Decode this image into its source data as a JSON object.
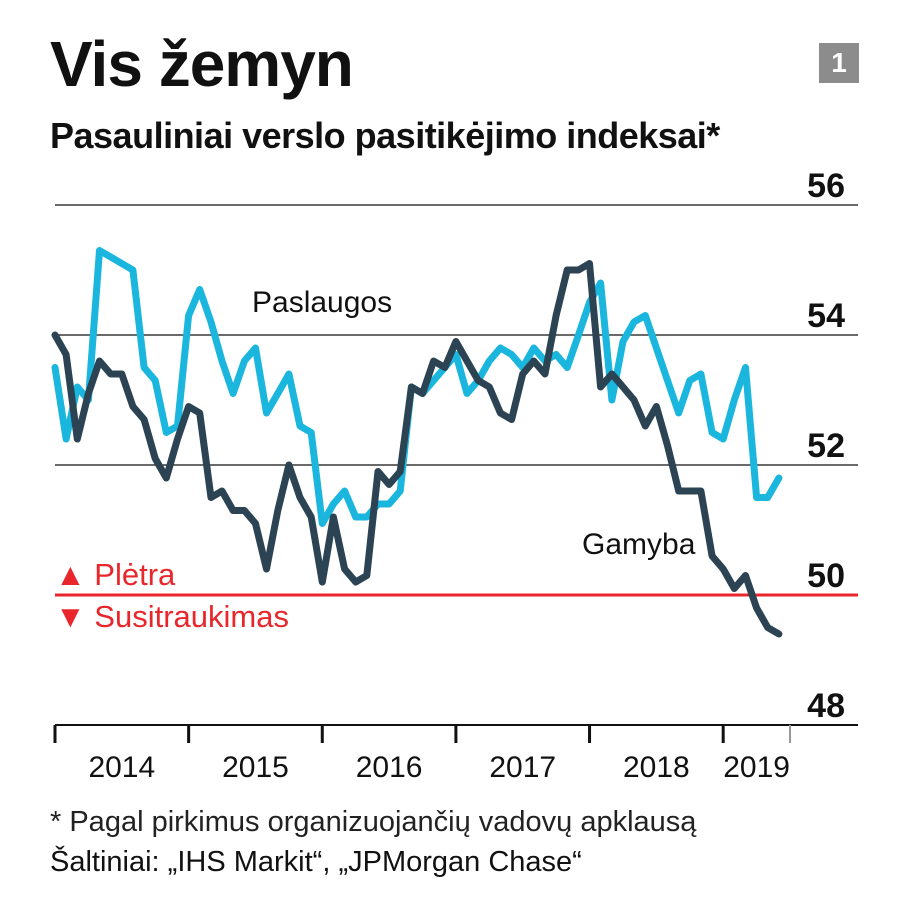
{
  "badge": "1",
  "colors": {
    "accent": "#e8262b",
    "services": "#1bb6de",
    "manufacturing": "#2c4353",
    "grid": "#111111",
    "badge_bg": "#8c8c8c"
  },
  "footnote": "* Pagal pirkimus organizuojančių vadovų apklausą",
  "sources": "Šaltiniai: „IHS Markit“, „JPMorgan Chase“",
  "chart_data": {
    "type": "line",
    "title": "Vis žemyn",
    "subtitle": "Pasauliniai verslo pasitikėjimo indeksai*",
    "ylim": [
      48,
      56
    ],
    "y_ticks": [
      48,
      50,
      52,
      54,
      56
    ],
    "grid": true,
    "x_range": [
      2014.0,
      2019.5
    ],
    "x_ticks": [
      "2014",
      "2015",
      "2016",
      "2017",
      "2018",
      "2019"
    ],
    "reference_line": {
      "value": 50,
      "label_above": "▲ Plėtra",
      "label_below": "▼ Susitraukimas"
    },
    "series": [
      {
        "name": "Paslaugos",
        "color": "#1bb6de",
        "x": [
          2014.0,
          2014.083,
          2014.167,
          2014.25,
          2014.333,
          2014.417,
          2014.5,
          2014.583,
          2014.667,
          2014.75,
          2014.833,
          2014.917,
          2015.0,
          2015.083,
          2015.167,
          2015.25,
          2015.333,
          2015.417,
          2015.5,
          2015.583,
          2015.667,
          2015.75,
          2015.833,
          2015.917,
          2016.0,
          2016.083,
          2016.167,
          2016.25,
          2016.333,
          2016.417,
          2016.5,
          2016.583,
          2016.667,
          2016.75,
          2016.833,
          2016.917,
          2017.0,
          2017.083,
          2017.167,
          2017.25,
          2017.333,
          2017.417,
          2017.5,
          2017.583,
          2017.667,
          2017.75,
          2017.833,
          2017.917,
          2018.0,
          2018.083,
          2018.167,
          2018.25,
          2018.333,
          2018.417,
          2018.5,
          2018.583,
          2018.667,
          2018.75,
          2018.833,
          2018.917,
          2019.0,
          2019.083,
          2019.167,
          2019.25,
          2019.333,
          2019.417
        ],
        "y": [
          53.5,
          52.4,
          53.2,
          53.0,
          55.3,
          55.2,
          55.1,
          55.0,
          53.5,
          53.3,
          52.5,
          52.6,
          54.3,
          54.7,
          54.2,
          53.6,
          53.1,
          53.6,
          53.8,
          52.8,
          53.1,
          53.4,
          52.6,
          52.5,
          51.1,
          51.4,
          51.6,
          51.2,
          51.2,
          51.4,
          51.4,
          51.6,
          53.2,
          53.1,
          53.3,
          53.5,
          53.7,
          53.1,
          53.3,
          53.6,
          53.8,
          53.7,
          53.5,
          53.8,
          53.6,
          53.7,
          53.5,
          54.0,
          54.5,
          54.8,
          53.0,
          53.9,
          54.2,
          54.3,
          53.8,
          53.3,
          52.8,
          53.3,
          53.4,
          52.5,
          52.4,
          53.0,
          53.5,
          51.5,
          51.5,
          51.8
        ]
      },
      {
        "name": "Gamyba",
        "color": "#2c4353",
        "x": [
          2014.0,
          2014.083,
          2014.167,
          2014.25,
          2014.333,
          2014.417,
          2014.5,
          2014.583,
          2014.667,
          2014.75,
          2014.833,
          2014.917,
          2015.0,
          2015.083,
          2015.167,
          2015.25,
          2015.333,
          2015.417,
          2015.5,
          2015.583,
          2015.667,
          2015.75,
          2015.833,
          2015.917,
          2016.0,
          2016.083,
          2016.167,
          2016.25,
          2016.333,
          2016.417,
          2016.5,
          2016.583,
          2016.667,
          2016.75,
          2016.833,
          2016.917,
          2017.0,
          2017.083,
          2017.167,
          2017.25,
          2017.333,
          2017.417,
          2017.5,
          2017.583,
          2017.667,
          2017.75,
          2017.833,
          2017.917,
          2018.0,
          2018.083,
          2018.167,
          2018.25,
          2018.333,
          2018.417,
          2018.5,
          2018.583,
          2018.667,
          2018.75,
          2018.833,
          2018.917,
          2019.0,
          2019.083,
          2019.167,
          2019.25,
          2019.333,
          2019.417
        ],
        "y": [
          54.0,
          53.7,
          52.4,
          53.1,
          53.6,
          53.4,
          53.4,
          52.9,
          52.7,
          52.1,
          51.8,
          52.4,
          52.9,
          52.8,
          51.5,
          51.6,
          51.3,
          51.3,
          51.1,
          50.4,
          51.3,
          52.0,
          51.5,
          51.2,
          50.2,
          51.2,
          50.4,
          50.2,
          50.3,
          51.9,
          51.7,
          51.9,
          53.2,
          53.1,
          53.6,
          53.5,
          53.9,
          53.6,
          53.3,
          53.2,
          52.8,
          52.7,
          53.4,
          53.6,
          53.4,
          54.3,
          55.0,
          55.0,
          55.1,
          53.2,
          53.4,
          53.2,
          53.0,
          52.6,
          52.9,
          52.3,
          51.6,
          51.6,
          51.6,
          50.6,
          50.4,
          50.1,
          50.3,
          49.8,
          49.5,
          49.4
        ]
      }
    ]
  }
}
